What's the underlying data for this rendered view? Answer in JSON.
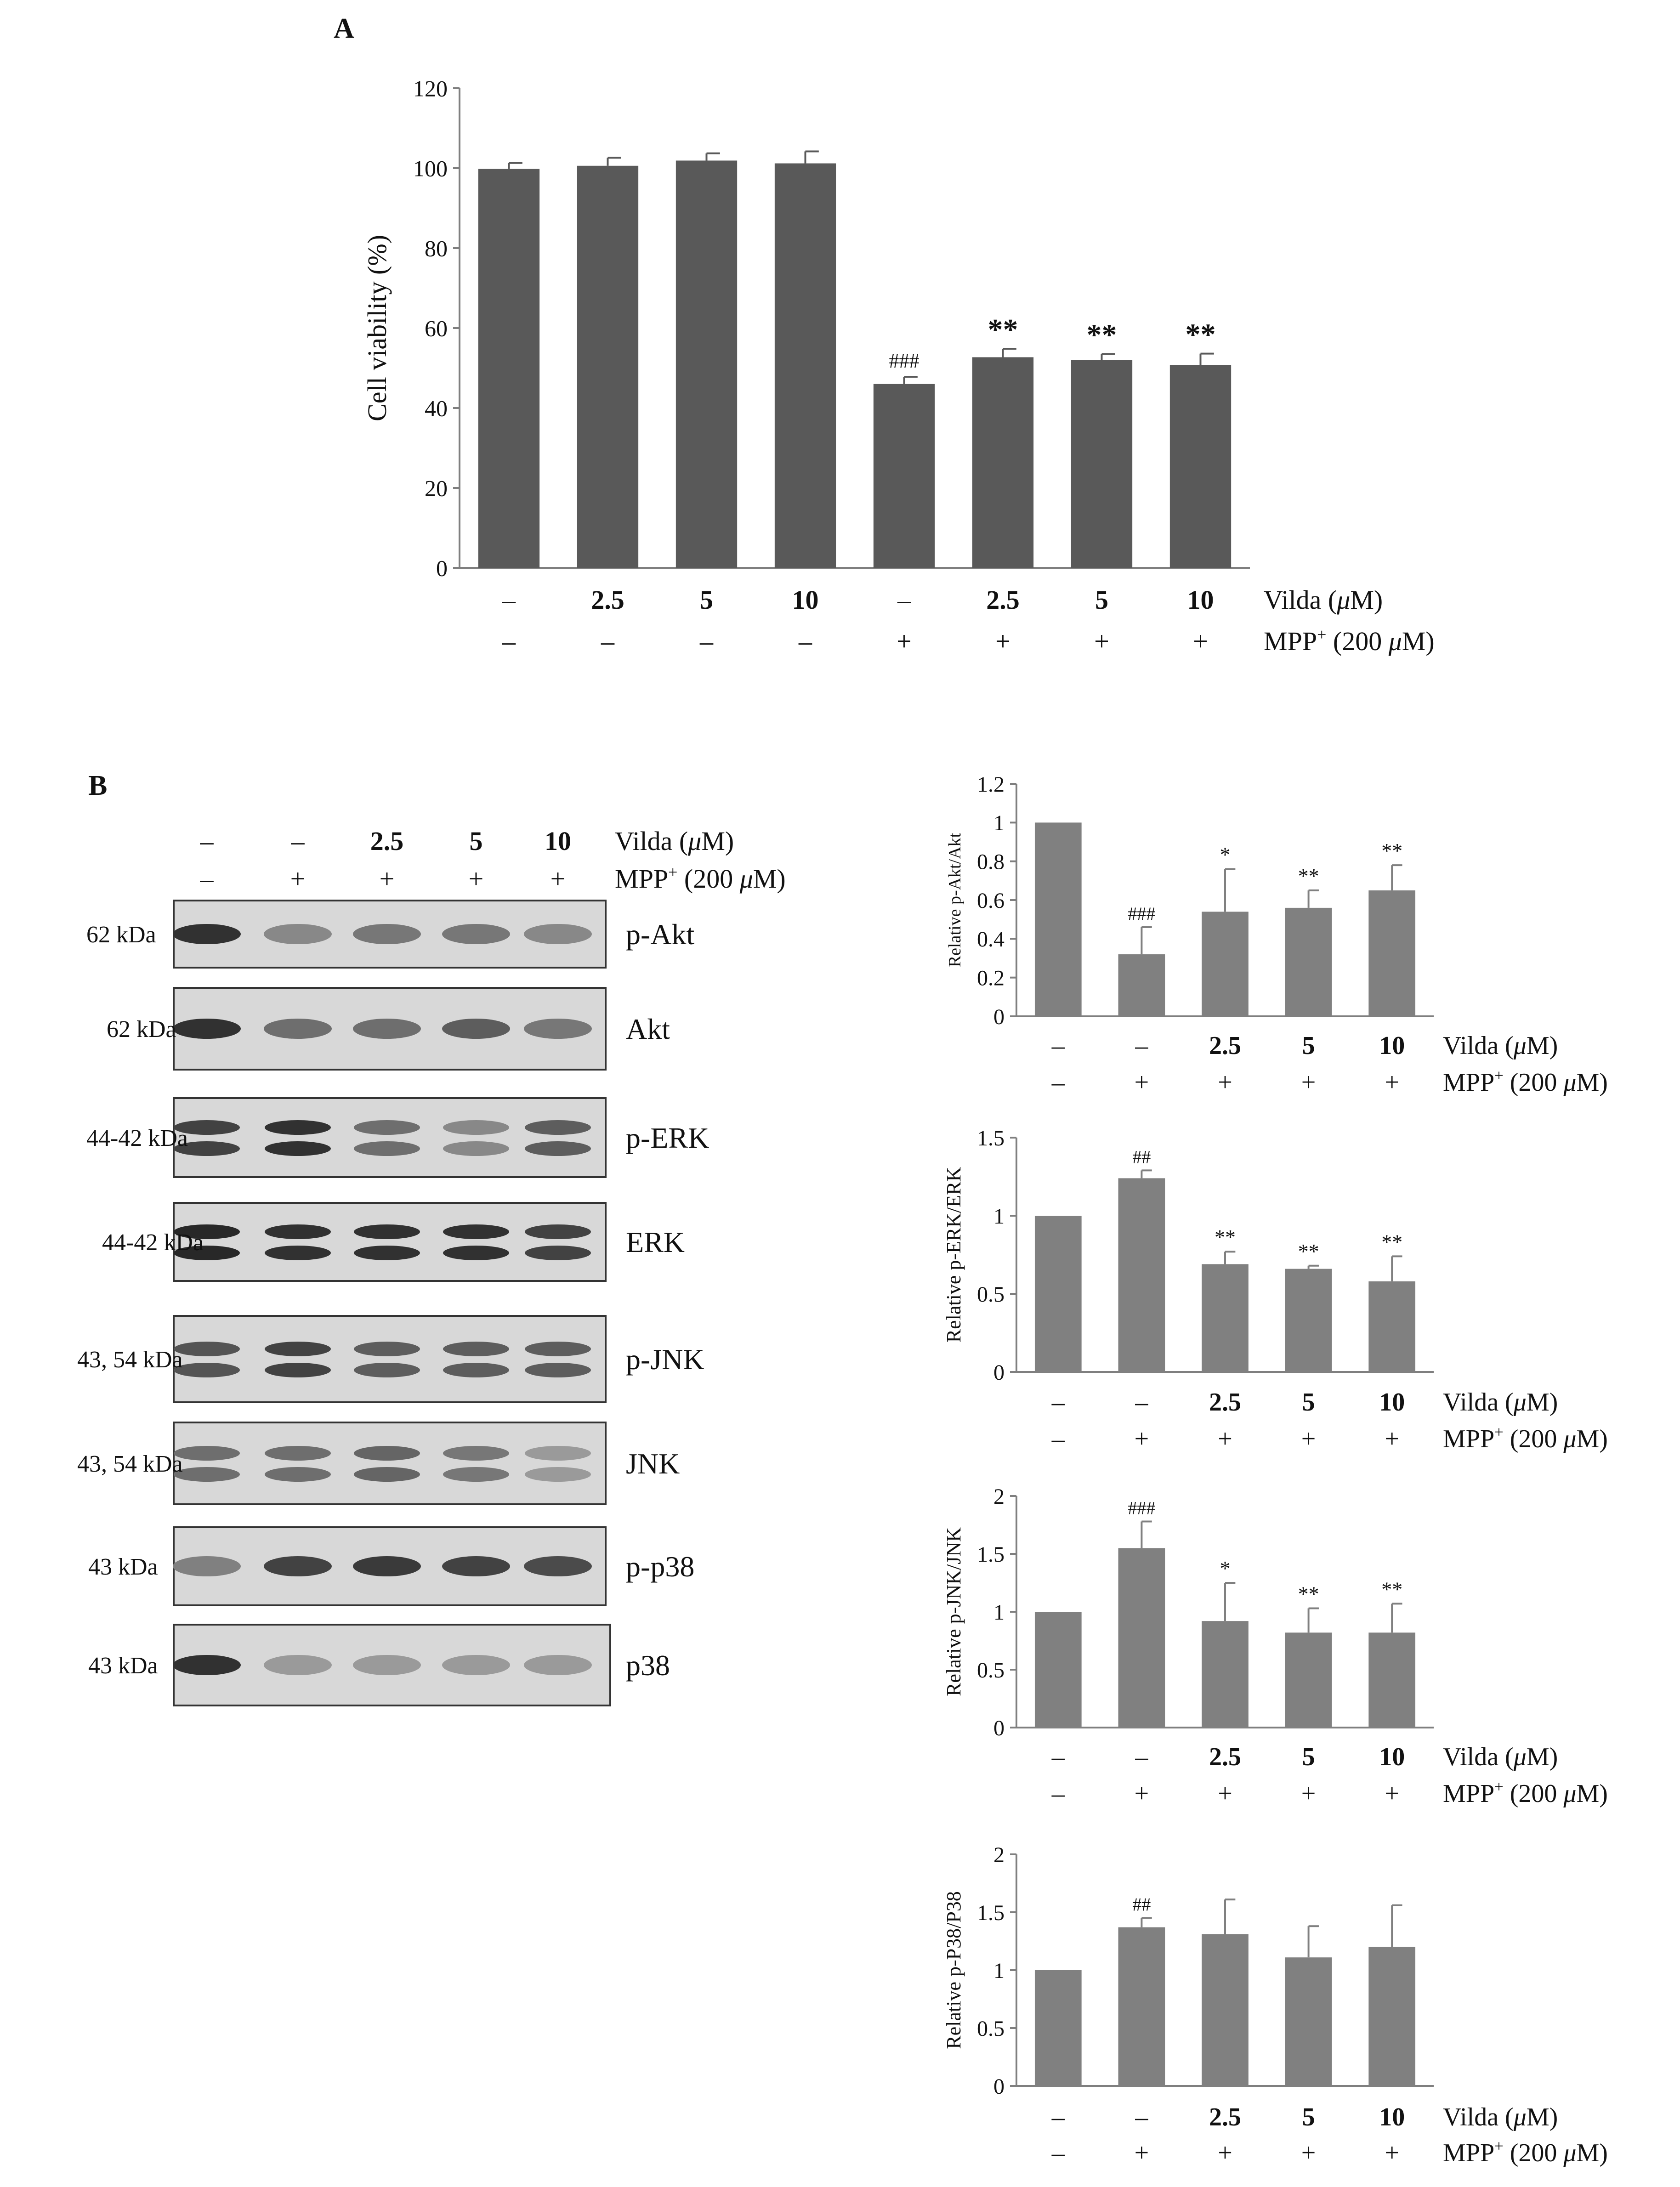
{
  "panel_labels": {
    "a": "A",
    "b": "B"
  },
  "conditions": {
    "vilda": [
      "–",
      "2.5",
      "5",
      "10",
      "–",
      "2.5",
      "5",
      "10"
    ],
    "mpp": [
      "–",
      "–",
      "–",
      "–",
      "+",
      "+",
      "+",
      "+"
    ],
    "vilda_b": [
      "–",
      "–",
      "2.5",
      "5",
      "10"
    ],
    "mpp_b": [
      "–",
      "+",
      "+",
      "+",
      "+"
    ],
    "vilda_label_prefix": "Vilda (",
    "mu": "μ",
    "vilda_label_suffix": "M)",
    "mpp_label_prefix": "MPP",
    "mpp_sup": "+",
    "mpp_label_suffix": " (200 ",
    "mpp_label_end": "M)"
  },
  "colors": {
    "bar_a": "#595959",
    "bar_b": "#808080",
    "axis": "#7f7f7f"
  },
  "chart_data": [
    {
      "id": "A",
      "type": "bar",
      "ylabel": "Cell viability  (%)",
      "ylim": [
        0,
        120
      ],
      "yticks": [
        0,
        20,
        40,
        60,
        80,
        100,
        120
      ],
      "values": [
        99.8,
        100.6,
        101.9,
        101.2,
        46.0,
        52.7,
        52.0,
        50.8
      ],
      "errors": [
        1.5,
        2.0,
        1.8,
        3.0,
        1.8,
        2.1,
        1.5,
        2.8
      ],
      "annotations": [
        "",
        "",
        "",
        "",
        "###",
        "**",
        "**",
        "**"
      ]
    },
    {
      "id": "B1",
      "type": "bar",
      "ylabel": "Relative p-Akt/Akt",
      "ylim": [
        0,
        1.2
      ],
      "yticks": [
        0,
        0.2,
        0.4,
        0.6,
        0.8,
        1,
        1.2
      ],
      "values": [
        1.0,
        0.32,
        0.54,
        0.56,
        0.65
      ],
      "errors": [
        0.0,
        0.14,
        0.22,
        0.09,
        0.13
      ],
      "annotations": [
        "",
        "###",
        "*",
        "**",
        "**"
      ]
    },
    {
      "id": "B2",
      "type": "bar",
      "ylabel": "Relative p-ERK/ERK",
      "ylim": [
        0,
        1.5
      ],
      "yticks": [
        0,
        0.5,
        1,
        1.5
      ],
      "values": [
        1.0,
        1.24,
        0.69,
        0.66,
        0.58
      ],
      "errors": [
        0.0,
        0.05,
        0.08,
        0.02,
        0.16
      ],
      "annotations": [
        "",
        "##",
        "**",
        "**",
        "**"
      ]
    },
    {
      "id": "B3",
      "type": "bar",
      "ylabel": "Relative p-JNK/JNK",
      "ylim": [
        0,
        2
      ],
      "yticks": [
        0,
        0.5,
        1,
        1.5,
        2
      ],
      "values": [
        1.0,
        1.55,
        0.92,
        0.82,
        0.82
      ],
      "errors": [
        0.0,
        0.23,
        0.33,
        0.21,
        0.25
      ],
      "annotations": [
        "",
        "###",
        "*",
        "**",
        "**"
      ]
    },
    {
      "id": "B4",
      "type": "bar",
      "ylabel": "Relative p-P38/P38",
      "ylim": [
        0,
        2
      ],
      "yticks": [
        0,
        0.5,
        1,
        1.5,
        2
      ],
      "values": [
        1.0,
        1.37,
        1.31,
        1.11,
        1.2
      ],
      "errors": [
        0.0,
        0.08,
        0.3,
        0.27,
        0.36
      ],
      "annotations": [
        "",
        "##",
        "",
        "",
        ""
      ]
    }
  ],
  "blots": [
    {
      "kda": "62 kDa",
      "protein": "p-Akt",
      "bands": [
        0.95,
        0.45,
        0.55,
        0.55,
        0.45
      ],
      "double": false
    },
    {
      "kda": "62 kDa",
      "protein": "Akt",
      "bands": [
        0.95,
        0.6,
        0.6,
        0.7,
        0.55
      ],
      "double": false
    },
    {
      "kda": "44-42 kDa",
      "protein": "p-ERK",
      "bands": [
        0.85,
        0.95,
        0.6,
        0.45,
        0.7
      ],
      "double": true
    },
    {
      "kda": "44-42 kDa",
      "protein": "ERK",
      "bands": [
        1.0,
        0.95,
        0.95,
        0.95,
        0.85
      ],
      "double": true
    },
    {
      "kda": "43, 54 kDa",
      "protein": "p-JNK",
      "bands": [
        0.75,
        0.85,
        0.7,
        0.7,
        0.7
      ],
      "double": true
    },
    {
      "kda": "43, 54 kDa",
      "protein": "JNK",
      "bands": [
        0.6,
        0.6,
        0.65,
        0.55,
        0.35
      ],
      "double": true
    },
    {
      "kda": "43  kDa",
      "protein": "p-p38",
      "bands": [
        0.5,
        0.85,
        0.9,
        0.85,
        0.8
      ],
      "double": false
    },
    {
      "kda": "43  kDa",
      "protein": "p38",
      "bands": [
        0.95,
        0.35,
        0.35,
        0.35,
        0.35
      ],
      "double": false
    }
  ]
}
